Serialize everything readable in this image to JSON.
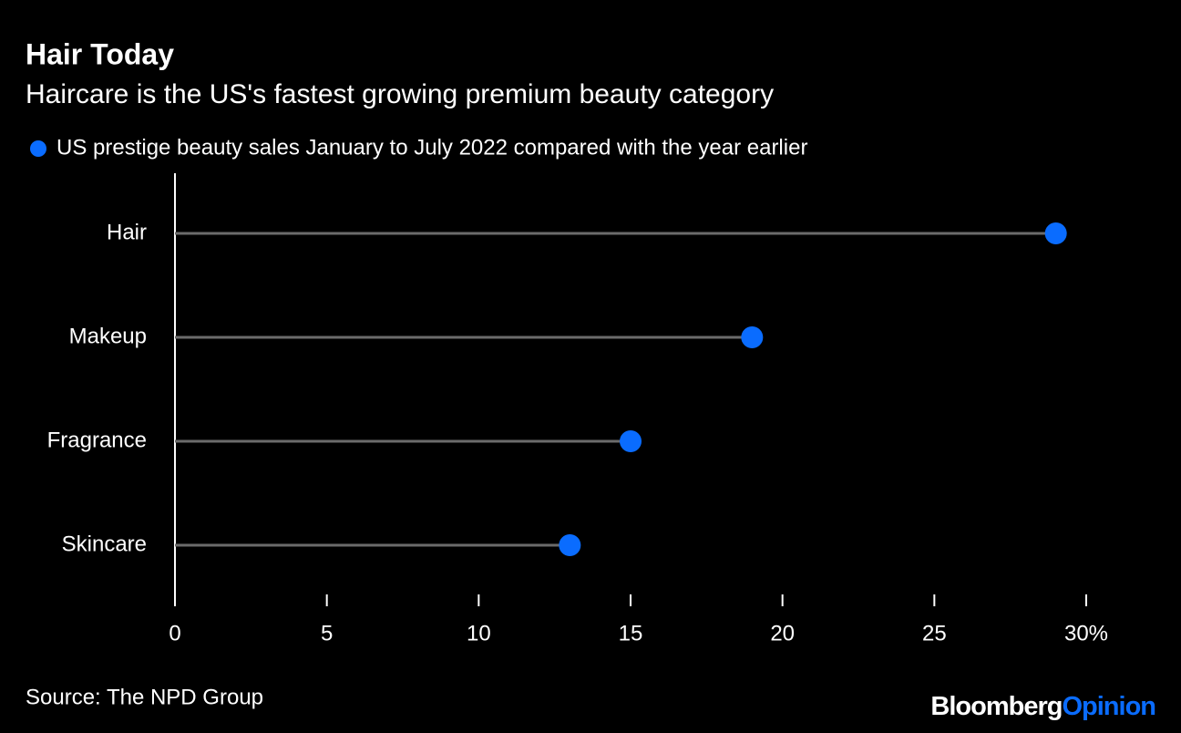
{
  "chart_data": {
    "type": "lollipop",
    "title": "Hair Today",
    "subtitle": "Haircare is the US's fastest growing premium beauty category",
    "categories": [
      "Hair",
      "Makeup",
      "Fragrance",
      "Skincare"
    ],
    "series": [
      {
        "name": "US prestige beauty sales January to July 2022 compared with the year earlier",
        "color": "#0a6cff",
        "values": [
          29,
          19,
          15,
          13
        ]
      }
    ],
    "xlim": [
      0,
      30
    ],
    "xticks": [
      0,
      5,
      10,
      15,
      20,
      25,
      {
        "value": 30,
        "label": "30%"
      }
    ],
    "stem_color": "#6b6b6b",
    "source": "Source: The NPD Group",
    "brand": "Bloomberg",
    "brand_section": "Opinion"
  }
}
